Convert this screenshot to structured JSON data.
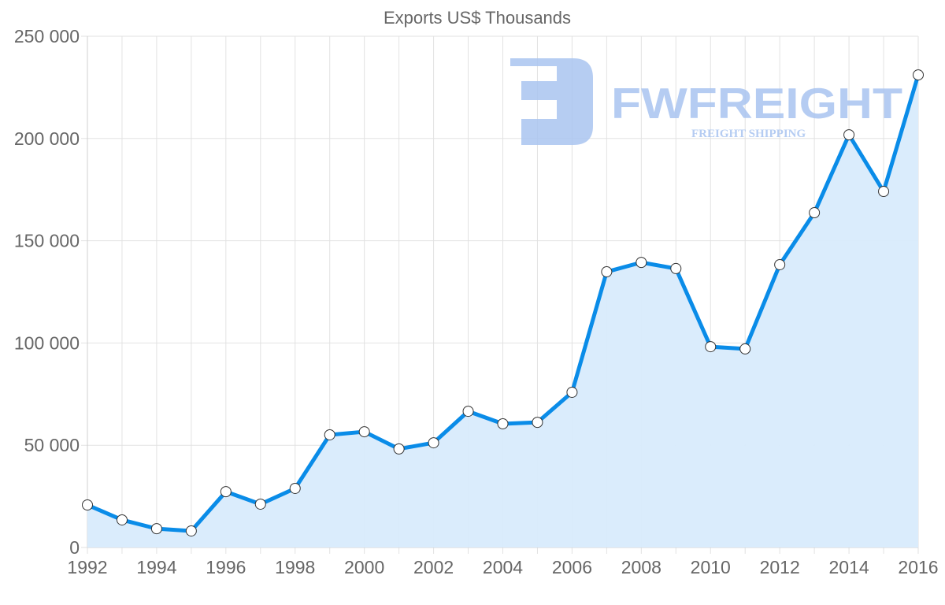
{
  "chart_data": {
    "type": "area",
    "title": "Exports US$ Thousands",
    "xlabel": "",
    "ylabel": "",
    "ylim": [
      0,
      250000
    ],
    "xlim": [
      1992,
      2016
    ],
    "grid": true,
    "legend": null,
    "y_ticks": [
      "0",
      "50 000",
      "100 000",
      "150 000",
      "200 000",
      "250 000"
    ],
    "y_tick_values": [
      0,
      50000,
      100000,
      150000,
      200000,
      250000
    ],
    "x_ticks": [
      "1992",
      "1994",
      "1996",
      "1998",
      "2000",
      "2002",
      "2004",
      "2006",
      "2008",
      "2010",
      "2012",
      "2014",
      "2016"
    ],
    "x": [
      1992,
      1993,
      1994,
      1995,
      1996,
      1997,
      1998,
      1999,
      2000,
      2001,
      2002,
      2003,
      2004,
      2005,
      2006,
      2007,
      2008,
      2009,
      2010,
      2011,
      2012,
      2013,
      2014,
      2015,
      2016
    ],
    "series": [
      {
        "name": "Exports US$ Thousands",
        "color": "#0a8ce8",
        "fill": "#d8ebfc",
        "values": [
          20800,
          13500,
          9200,
          8100,
          27300,
          21200,
          28900,
          55100,
          56600,
          48200,
          51200,
          66600,
          60500,
          61200,
          75900,
          134800,
          139400,
          136400,
          98200,
          97100,
          138300,
          163700,
          201800,
          174100,
          231100
        ]
      }
    ]
  },
  "watermark": {
    "brand": "FWFREIGHT",
    "tagline": "FREIGHT SHIPPING",
    "color": "#a9c4f0"
  }
}
